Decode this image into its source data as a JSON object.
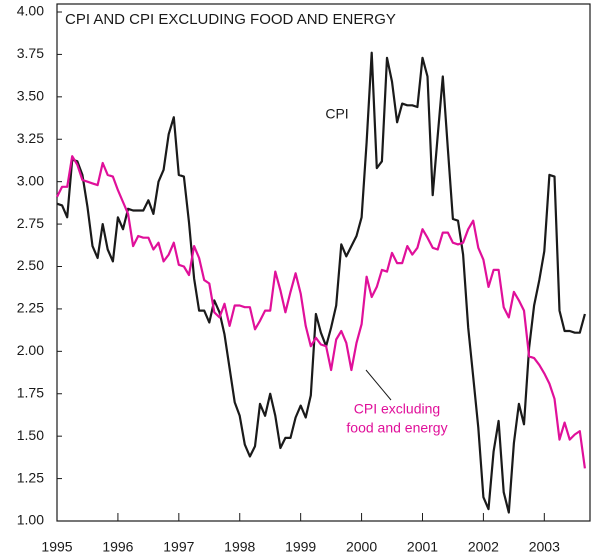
{
  "chart_data": {
    "type": "line",
    "title": "CPI AND CPI EXCLUDING FOOD AND ENERGY",
    "annotations": [
      {
        "text": [
          "CPI"
        ],
        "color": "#1a1a1a"
      },
      {
        "text": [
          "CPI excluding",
          "food and energy"
        ],
        "color": "#e0109a"
      }
    ],
    "x": [
      1995,
      1995.083,
      1995.167,
      1995.25,
      1995.333,
      1995.417,
      1995.5,
      1995.583,
      1995.667,
      1995.75,
      1995.833,
      1995.917,
      1996,
      1996.083,
      1996.167,
      1996.25,
      1996.333,
      1996.417,
      1996.5,
      1996.583,
      1996.667,
      1996.75,
      1996.833,
      1996.917,
      1997,
      1997.083,
      1997.167,
      1997.25,
      1997.333,
      1997.417,
      1997.5,
      1997.583,
      1997.667,
      1997.75,
      1997.833,
      1997.917,
      1998,
      1998.083,
      1998.167,
      1998.25,
      1998.333,
      1998.417,
      1998.5,
      1998.583,
      1998.667,
      1998.75,
      1998.833,
      1998.917,
      1999,
      1999.083,
      1999.167,
      1999.25,
      1999.333,
      1999.417,
      1999.5,
      1999.583,
      1999.667,
      1999.75,
      1999.833,
      1999.917,
      2000,
      2000.083,
      2000.167,
      2000.25,
      2000.333,
      2000.417,
      2000.5,
      2000.583,
      2000.667,
      2000.75,
      2000.833,
      2000.917,
      2001,
      2001.083,
      2001.167,
      2001.25,
      2001.333,
      2001.417,
      2001.5,
      2001.583,
      2001.667,
      2001.75,
      2001.833,
      2001.917,
      2002,
      2002.083,
      2002.167,
      2002.25,
      2002.333,
      2002.417,
      2002.5,
      2002.583,
      2002.667,
      2002.75,
      2002.833,
      2002.917,
      2003,
      2003.083,
      2003.167,
      2003.25,
      2003.333,
      2003.417,
      2003.5,
      2003.583,
      2003.667
    ],
    "series": [
      {
        "name": "CPI",
        "color": "#1a1a1a",
        "values": [
          2.87,
          2.86,
          2.79,
          3.13,
          3.12,
          3.04,
          2.85,
          2.62,
          2.55,
          2.75,
          2.6,
          2.53,
          2.79,
          2.72,
          2.84,
          2.83,
          2.83,
          2.83,
          2.89,
          2.81,
          3.0,
          3.07,
          3.28,
          3.38,
          3.04,
          3.03,
          2.76,
          2.43,
          2.24,
          2.24,
          2.17,
          2.3,
          2.23,
          2.1,
          1.9,
          1.7,
          1.62,
          1.45,
          1.38,
          1.44,
          1.69,
          1.62,
          1.75,
          1.62,
          1.43,
          1.49,
          1.49,
          1.61,
          1.68,
          1.61,
          1.74,
          2.22,
          2.11,
          2.03,
          2.14,
          2.27,
          2.63,
          2.56,
          2.62,
          2.68,
          2.79,
          3.23,
          3.76,
          3.08,
          3.12,
          3.73,
          3.59,
          3.35,
          3.46,
          3.45,
          3.45,
          3.44,
          3.73,
          3.62,
          2.92,
          3.27,
          3.62,
          3.19,
          2.78,
          2.77,
          2.57,
          2.14,
          1.85,
          1.55,
          1.14,
          1.07,
          1.41,
          1.59,
          1.17,
          1.05,
          1.46,
          1.69,
          1.57,
          2.02,
          2.27,
          2.42,
          2.59,
          3.04,
          3.03,
          2.24,
          2.12,
          2.12,
          2.11,
          2.11,
          2.22
        ]
      },
      {
        "name": "CPI excluding food and energy",
        "color": "#e0109a",
        "values": [
          2.91,
          2.97,
          2.97,
          3.15,
          3.1,
          3.01,
          3.0,
          2.99,
          2.98,
          3.11,
          3.04,
          3.03,
          2.95,
          2.88,
          2.81,
          2.62,
          2.68,
          2.67,
          2.67,
          2.6,
          2.64,
          2.53,
          2.57,
          2.64,
          2.51,
          2.5,
          2.45,
          2.62,
          2.55,
          2.42,
          2.4,
          2.23,
          2.2,
          2.28,
          2.15,
          2.27,
          2.27,
          2.26,
          2.26,
          2.13,
          2.18,
          2.24,
          2.24,
          2.47,
          2.36,
          2.23,
          2.35,
          2.46,
          2.34,
          2.15,
          2.03,
          2.08,
          2.04,
          2.03,
          1.89,
          2.07,
          2.12,
          2.05,
          1.89,
          2.05,
          2.16,
          2.44,
          2.32,
          2.38,
          2.48,
          2.47,
          2.58,
          2.52,
          2.52,
          2.62,
          2.57,
          2.61,
          2.72,
          2.67,
          2.61,
          2.6,
          2.7,
          2.7,
          2.64,
          2.63,
          2.64,
          2.72,
          2.77,
          2.61,
          2.54,
          2.38,
          2.48,
          2.48,
          2.26,
          2.2,
          2.35,
          2.3,
          2.24,
          1.97,
          1.96,
          1.92,
          1.87,
          1.81,
          1.72,
          1.48,
          1.58,
          1.48,
          1.51,
          1.53,
          1.31
        ]
      }
    ],
    "xlim": [
      1995,
      2003.75
    ],
    "xticks": [
      1995,
      1996,
      1997,
      1998,
      1999,
      2000,
      2001,
      2002,
      2003
    ],
    "ylim": [
      1,
      4
    ],
    "yticks": [
      {
        "value": 1,
        "label": "1.00"
      },
      {
        "value": 1.25,
        "label": "1.25"
      },
      {
        "value": 1.5,
        "label": "1.50"
      },
      {
        "value": 1.75,
        "label": "1.75"
      },
      {
        "value": 2,
        "label": "2.00"
      },
      {
        "value": 2.25,
        "label": "2.25"
      },
      {
        "value": 2.5,
        "label": "2.50"
      },
      {
        "value": 2.75,
        "label": "2.75"
      },
      {
        "value": 3,
        "label": "3.00"
      },
      {
        "value": 3.25,
        "label": "3.25"
      },
      {
        "value": 3.5,
        "label": "3.50"
      },
      {
        "value": 3.75,
        "label": "3.75"
      },
      {
        "value": 4,
        "label": "4.00"
      }
    ],
    "grid": false
  }
}
